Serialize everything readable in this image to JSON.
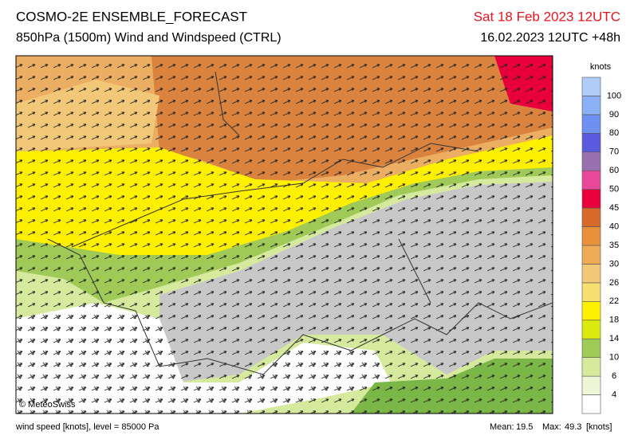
{
  "header": {
    "title": "COSMO-2E ENSEMBLE_FORECAST",
    "subtitle": "850hPa (1500m) Wind and Windspeed (CTRL)",
    "valid_time": "Sat 18 Feb 2023 12UTC",
    "run_time": "16.02.2023 12UTC +48h"
  },
  "map": {
    "credit": "© MeteoSwiss"
  },
  "legend": {
    "title": "knots",
    "levels": [
      4,
      6,
      10,
      14,
      18,
      22,
      26,
      30,
      35,
      40,
      45,
      50,
      60,
      70,
      80,
      90,
      100
    ],
    "colors": [
      "#ffffff",
      "#eef6d8",
      "#d6ea9e",
      "#9fca58",
      "#dcea10",
      "#fff000",
      "#f8e070",
      "#f2c878",
      "#eeaa55",
      "#e8903c",
      "#d66a28",
      "#e8003c",
      "#e8489a",
      "#9a70b0",
      "#5a5ade",
      "#6e90f0",
      "#8cb0f6",
      "#b0ccf8"
    ]
  },
  "footer": {
    "caption": "wind speed [knots], level = 85000 Pa",
    "mean_label": "Mean:",
    "mean": 19.5,
    "max_label": "Max:",
    "max": 49.3,
    "unit": "[knots]"
  }
}
